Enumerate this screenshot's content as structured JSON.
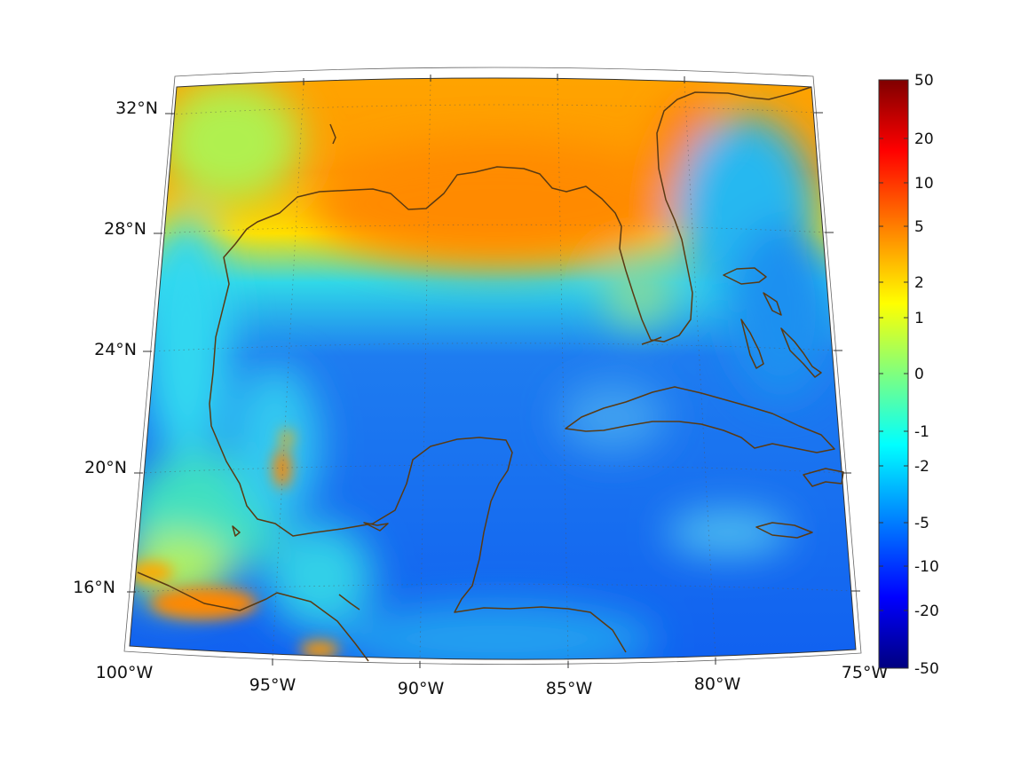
{
  "map": {
    "lat_labels": [
      "32°N",
      "28°N",
      "24°N",
      "20°N",
      "16°N"
    ],
    "lon_labels": [
      "100°W",
      "95°W",
      "90°W",
      "85°W",
      "80°W",
      "75°W"
    ],
    "extent": {
      "lon_min": -100,
      "lon_max": -75,
      "lat_min": 14,
      "lat_max": 33
    },
    "coastline_color": "#5a3a12",
    "grid": "dotted"
  },
  "colorbar": {
    "tick_labels": [
      "50",
      "20",
      "10",
      "5",
      "2",
      "1",
      "0",
      "-1",
      "-2",
      "-5",
      "-10",
      "-20",
      "-50"
    ],
    "colormap": "jet",
    "colors": [
      "#00007f",
      "#0000ff",
      "#007fff",
      "#00ffff",
      "#7fff7f",
      "#ffff00",
      "#ff7f00",
      "#ff0000",
      "#7f0000"
    ]
  }
}
